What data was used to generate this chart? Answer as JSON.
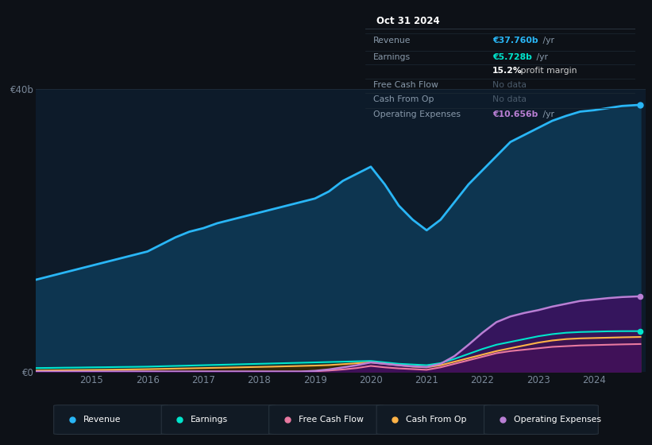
{
  "bg_color": "#0d1117",
  "plot_bg_color": "#0d1b2a",
  "grid_color": "#1e2a38",
  "years": [
    2014.0,
    2014.25,
    2014.5,
    2014.75,
    2015.0,
    2015.25,
    2015.5,
    2015.75,
    2016.0,
    2016.25,
    2016.5,
    2016.75,
    2017.0,
    2017.25,
    2017.5,
    2017.75,
    2018.0,
    2018.25,
    2018.5,
    2018.75,
    2019.0,
    2019.25,
    2019.5,
    2019.75,
    2020.0,
    2020.25,
    2020.5,
    2020.75,
    2021.0,
    2021.25,
    2021.5,
    2021.75,
    2022.0,
    2022.25,
    2022.5,
    2022.75,
    2023.0,
    2023.25,
    2023.5,
    2023.75,
    2024.0,
    2024.25,
    2024.5,
    2024.83
  ],
  "revenue": [
    13.0,
    13.5,
    14.0,
    14.5,
    15.0,
    15.5,
    16.0,
    16.5,
    17.0,
    18.0,
    19.0,
    19.8,
    20.3,
    21.0,
    21.5,
    22.0,
    22.5,
    23.0,
    23.5,
    24.0,
    24.5,
    25.5,
    27.0,
    28.0,
    29.0,
    26.5,
    23.5,
    21.5,
    20.0,
    21.5,
    24.0,
    26.5,
    28.5,
    30.5,
    32.5,
    33.5,
    34.5,
    35.5,
    36.2,
    36.8,
    37.0,
    37.3,
    37.6,
    37.76
  ],
  "earnings": [
    0.5,
    0.52,
    0.55,
    0.57,
    0.6,
    0.62,
    0.65,
    0.67,
    0.7,
    0.75,
    0.8,
    0.85,
    0.9,
    0.95,
    1.0,
    1.05,
    1.1,
    1.15,
    1.2,
    1.25,
    1.3,
    1.35,
    1.4,
    1.45,
    1.5,
    1.3,
    1.1,
    1.0,
    0.9,
    1.2,
    1.8,
    2.5,
    3.2,
    3.8,
    4.2,
    4.6,
    5.0,
    5.3,
    5.5,
    5.6,
    5.65,
    5.7,
    5.72,
    5.728
  ],
  "free_cash_flow": [
    0.0,
    0.0,
    0.0,
    0.0,
    0.0,
    0.0,
    0.0,
    0.0,
    0.0,
    0.0,
    0.0,
    0.0,
    0.0,
    0.0,
    0.0,
    0.0,
    0.0,
    0.0,
    0.0,
    0.0,
    0.05,
    0.15,
    0.3,
    0.5,
    0.8,
    0.6,
    0.45,
    0.35,
    0.25,
    0.6,
    1.1,
    1.6,
    2.1,
    2.6,
    2.9,
    3.1,
    3.3,
    3.5,
    3.6,
    3.7,
    3.75,
    3.8,
    3.85,
    3.9
  ],
  "cash_from_op": [
    0.15,
    0.17,
    0.19,
    0.21,
    0.23,
    0.25,
    0.28,
    0.31,
    0.34,
    0.38,
    0.42,
    0.46,
    0.5,
    0.54,
    0.58,
    0.62,
    0.66,
    0.7,
    0.75,
    0.8,
    0.85,
    0.92,
    1.05,
    1.18,
    1.3,
    1.1,
    0.9,
    0.7,
    0.6,
    0.9,
    1.4,
    1.9,
    2.4,
    2.9,
    3.3,
    3.7,
    4.1,
    4.4,
    4.6,
    4.7,
    4.75,
    4.8,
    4.85,
    4.9
  ],
  "op_expenses": [
    0.0,
    0.0,
    0.0,
    0.0,
    0.0,
    0.0,
    0.0,
    0.0,
    0.0,
    0.0,
    0.0,
    0.0,
    0.0,
    0.0,
    0.0,
    0.0,
    0.0,
    0.0,
    0.0,
    0.0,
    0.1,
    0.3,
    0.6,
    0.9,
    1.3,
    1.1,
    0.9,
    0.75,
    0.65,
    1.1,
    2.2,
    3.8,
    5.5,
    7.0,
    7.8,
    8.3,
    8.7,
    9.2,
    9.6,
    10.0,
    10.2,
    10.4,
    10.55,
    10.656
  ],
  "revenue_line_color": "#29b6f6",
  "revenue_fill_color": "#0d3550",
  "earnings_line_color": "#00e5cc",
  "earnings_fill_color": "#0a3535",
  "fcf_line_color": "#e879a0",
  "fcf_fill_color": "#5a1535",
  "cashop_line_color": "#ffb347",
  "cashop_fill_color": "#3d2500",
  "opex_line_color": "#b97fd4",
  "opex_fill_color": "#3d1060",
  "ylim": [
    0,
    40
  ],
  "xlim": [
    2014.0,
    2024.92
  ],
  "xticks": [
    2015,
    2016,
    2017,
    2018,
    2019,
    2020,
    2021,
    2022,
    2023,
    2024
  ],
  "legend_items": [
    {
      "label": "Revenue",
      "color": "#29b6f6"
    },
    {
      "label": "Earnings",
      "color": "#00e5cc"
    },
    {
      "label": "Free Cash Flow",
      "color": "#e879a0"
    },
    {
      "label": "Cash From Op",
      "color": "#ffb347"
    },
    {
      "label": "Operating Expenses",
      "color": "#b97fd4"
    }
  ]
}
